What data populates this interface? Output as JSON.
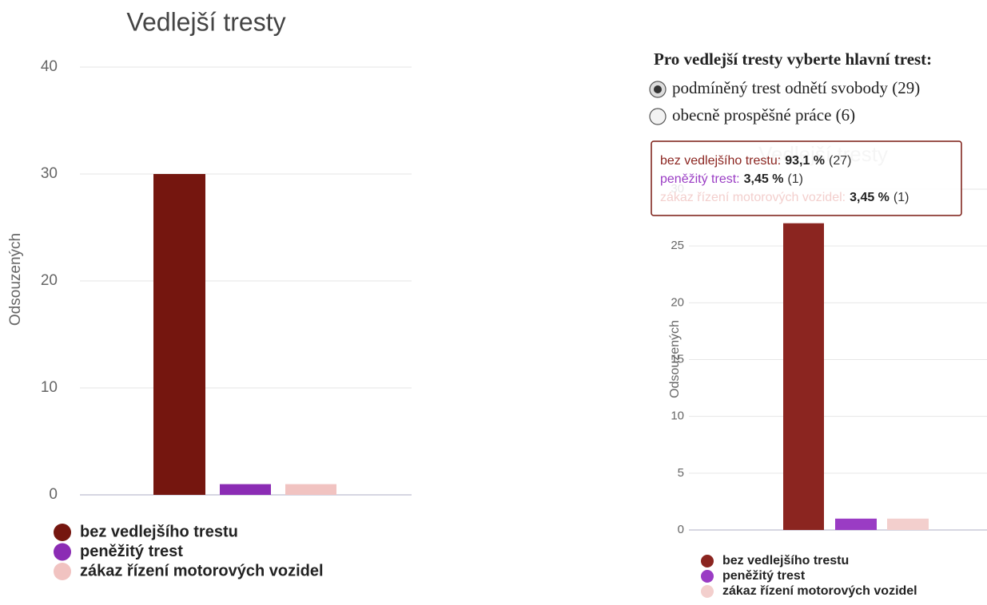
{
  "chart_data": [
    {
      "type": "bar",
      "title": "Vedlejší tresty",
      "y_label": "Odsouzených",
      "ylim": [
        0,
        40
      ],
      "yticks": [
        0,
        10,
        20,
        30,
        40
      ],
      "grid": true,
      "series": [
        {
          "name": "bez vedlejšího trestu",
          "color": "#75160f",
          "values": [
            30
          ]
        },
        {
          "name": "peněžitý trest",
          "color": "#8b2cb4",
          "values": [
            1
          ]
        },
        {
          "name": "zákaz řízení motorových vozidel",
          "color": "#f1c3c1",
          "values": [
            1
          ]
        }
      ]
    },
    {
      "type": "bar",
      "title": "Vedlejší tresty",
      "y_label": "Odsouzených",
      "ylim": [
        0,
        30
      ],
      "yticks": [
        0,
        5,
        10,
        15,
        20,
        25,
        30
      ],
      "grid": true,
      "series": [
        {
          "name": "bez vedlejšího trestu",
          "color": "#8b2520",
          "values": [
            27
          ]
        },
        {
          "name": "peněžitý trest",
          "color": "#9a3cc4",
          "values": [
            1
          ]
        },
        {
          "name": "zákaz řízení motorových vozidel",
          "color": "#f3cfcd",
          "values": [
            1
          ]
        }
      ]
    }
  ],
  "selector": {
    "heading": "Pro vedlejší tresty vyberte hlavní trest:",
    "options": [
      {
        "label": "podmíněný trest odnětí svobody (29)",
        "selected": true
      },
      {
        "label": "obecně prospěšné práce (6)",
        "selected": false
      }
    ]
  },
  "tooltip": {
    "rows": [
      {
        "label": "bez vedlejšího trestu:",
        "value": "93,1 %",
        "count": "(27)"
      },
      {
        "label": "peněžitý trest:",
        "value": "3,45 %",
        "count": "(1)"
      },
      {
        "label": "zákaz řízení motorových vozidel:",
        "value": "3,45 %",
        "count": "(1)"
      }
    ]
  }
}
